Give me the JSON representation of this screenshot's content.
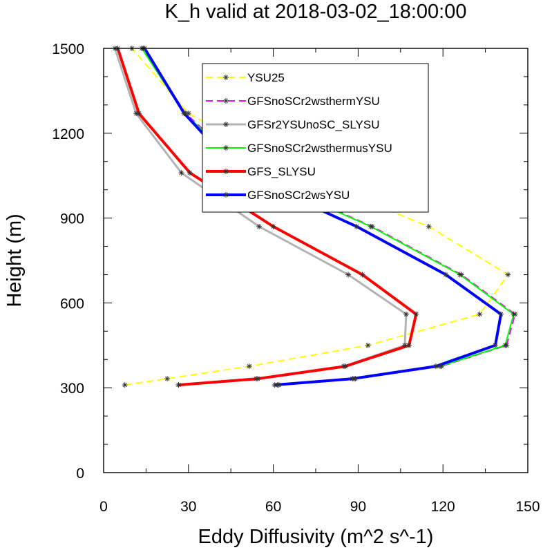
{
  "chart_data": {
    "type": "line",
    "title": "K_h valid at 2018-03-02_18:00:00",
    "xlabel": "Eddy Diffusivity (m^2 s^-1)",
    "ylabel": "Height (m)",
    "xlim": [
      0,
      150
    ],
    "ylim": [
      0,
      1500
    ],
    "x_ticks": [
      0,
      30,
      60,
      90,
      120,
      150
    ],
    "y_ticks": [
      0,
      300,
      600,
      900,
      1200,
      1500
    ],
    "x_tick_labels": [
      "0",
      "30",
      "60",
      "90",
      "120",
      "150"
    ],
    "y_tick_labels": [
      "0",
      "300",
      "600",
      "900",
      "1200",
      "1500"
    ],
    "grid": false,
    "legend_position": "top-center",
    "series": [
      {
        "name": "YSU25",
        "color": "#ffff00",
        "dash": "dashed",
        "width": 2,
        "x": [
          7.5,
          22.5,
          51.5,
          93.5,
          133,
          143,
          115,
          68,
          30,
          10
        ],
        "y": [
          310,
          332,
          376,
          450,
          560,
          700,
          870,
          1060,
          1270,
          1500
        ]
      },
      {
        "name": "GFSnoSCr2wsthermYSU",
        "color": "#ff00ff",
        "dash": "dashed",
        "width": 2,
        "x": [
          62,
          89,
          119.5,
          142.5,
          145.5,
          126.5,
          95,
          52,
          29,
          14
        ],
        "y": [
          310,
          332,
          376,
          450,
          560,
          700,
          870,
          1060,
          1270,
          1500
        ]
      },
      {
        "name": "GFSr2YSUnoSC_SLYSU",
        "color": "#b3b3b3",
        "dash": "solid",
        "width": 3,
        "x": [
          26.5,
          54,
          85,
          106.5,
          107,
          86.5,
          55,
          27.5,
          11.5,
          4
        ],
        "y": [
          310,
          332,
          376,
          450,
          560,
          700,
          870,
          1060,
          1270,
          1500
        ]
      },
      {
        "name": "GFSnoSCr2wsthermusYSU",
        "color": "#00ff00",
        "dash": "solid",
        "width": 2,
        "x": [
          61.5,
          88.5,
          119,
          142,
          145,
          126,
          94.5,
          51.5,
          28.5,
          13.5
        ],
        "y": [
          310,
          332,
          376,
          450,
          560,
          700,
          870,
          1060,
          1270,
          1500
        ]
      },
      {
        "name": "GFS_SLYSU",
        "color": "#ff0000",
        "dash": "solid",
        "width": 4,
        "x": [
          26.5,
          54.5,
          85.5,
          108,
          110.5,
          91.5,
          60,
          30.5,
          12.5,
          5
        ],
        "y": [
          310,
          332,
          376,
          450,
          560,
          700,
          870,
          1060,
          1270,
          1500
        ]
      },
      {
        "name": "GFSnoSCr2wsYSU",
        "color": "#0000ff",
        "dash": "solid",
        "width": 4,
        "x": [
          60.5,
          88,
          117.5,
          138.5,
          140.5,
          121,
          89.5,
          48,
          28.5,
          14.5
        ],
        "y": [
          310,
          332,
          376,
          450,
          560,
          700,
          870,
          1060,
          1270,
          1500
        ]
      }
    ]
  }
}
